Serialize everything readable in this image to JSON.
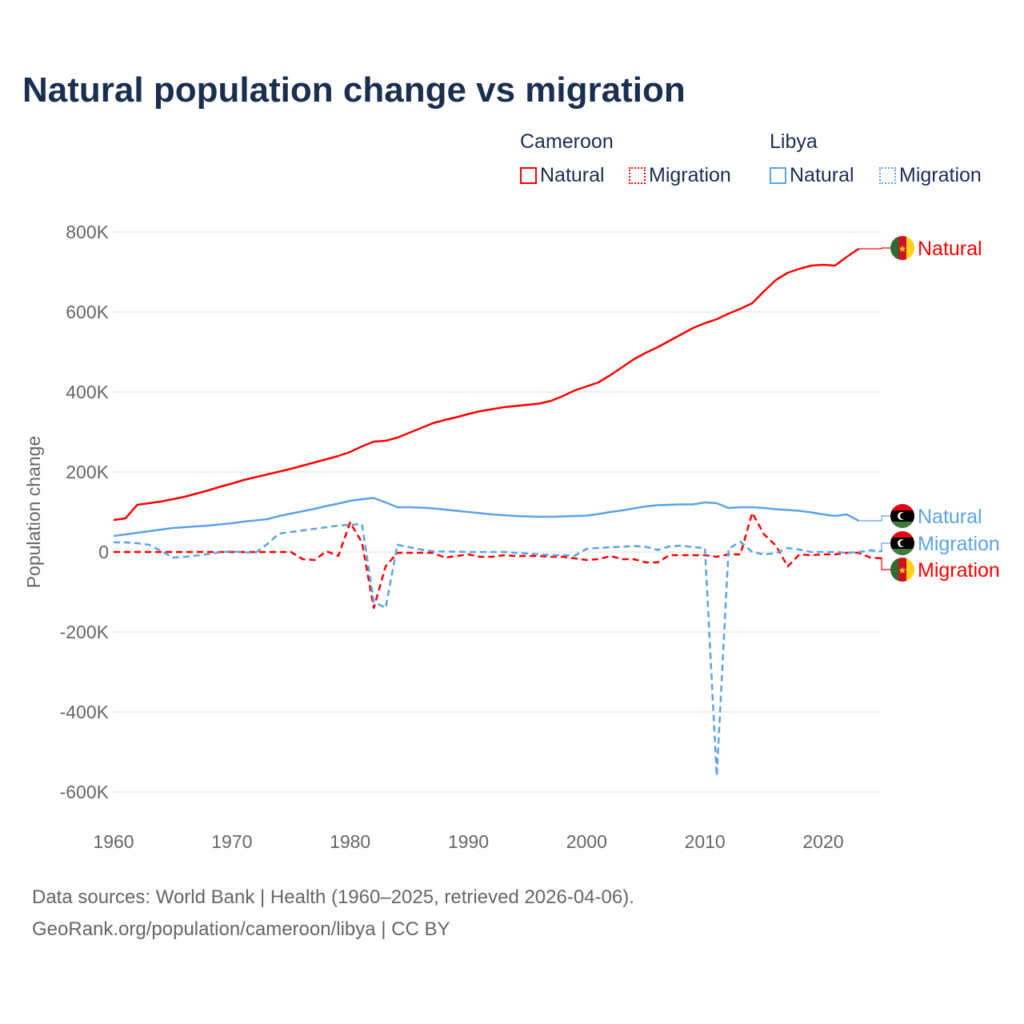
{
  "chart_data": {
    "type": "line",
    "title": "Natural population change vs migration",
    "ylabel": "Population change",
    "xlabel": "",
    "xlim": [
      1960,
      2025
    ],
    "ylim": [
      -600000,
      800000
    ],
    "x_ticks": [
      1960,
      1970,
      1980,
      1990,
      2000,
      2010,
      2020
    ],
    "x_tick_labels": [
      "1960",
      "1970",
      "1980",
      "1990",
      "2000",
      "2010",
      "2020"
    ],
    "y_ticks": [
      800000,
      600000,
      400000,
      200000,
      0,
      -200000,
      -400000,
      -600000
    ],
    "y_tick_labels": [
      "800K",
      "600K",
      "400K",
      "200K",
      "0",
      "-200K",
      "-400K",
      "-600K"
    ],
    "grid": true,
    "legend": {
      "placement": "top-right",
      "groups": [
        {
          "name": "Cameroon",
          "items": [
            "Natural",
            "Migration"
          ]
        },
        {
          "name": "Libya",
          "items": [
            "Natural",
            "Migration"
          ]
        }
      ]
    },
    "series": [
      {
        "name": "Cameroon Natural",
        "country": "Cameroon",
        "kind": "Natural",
        "label": "Natural",
        "color": "#ff0000",
        "dash": false,
        "start": 1960,
        "values": [
          80000,
          84000,
          118000,
          122000,
          126000,
          132000,
          138000,
          146000,
          154000,
          163000,
          171000,
          180000,
          187000,
          194000,
          201000,
          208000,
          216000,
          224000,
          232000,
          240000,
          250000,
          264000,
          276000,
          278000,
          286000,
          298000,
          310000,
          322000,
          330000,
          337000,
          345000,
          352000,
          357000,
          362000,
          365000,
          368000,
          371000,
          378000,
          390000,
          404000,
          414000,
          424000,
          442000,
          462000,
          482000,
          498000,
          512000,
          528000,
          544000,
          560000,
          572000,
          582000,
          596000,
          608000,
          622000,
          652000,
          680000,
          698000,
          708000,
          716000,
          718000,
          716000,
          738000,
          758000
        ]
      },
      {
        "name": "Cameroon Migration",
        "country": "Cameroon",
        "kind": "Migration",
        "label": "Migration",
        "color": "#ff0000",
        "dash": true,
        "start": 1960,
        "values": [
          0,
          0,
          0,
          0,
          0,
          0,
          0,
          0,
          0,
          0,
          0,
          0,
          0,
          0,
          0,
          0,
          -18000,
          -20000,
          2000,
          -10000,
          74000,
          24000,
          -140000,
          -36000,
          -2000,
          -2000,
          -2000,
          -2000,
          -14000,
          -10000,
          -6000,
          -12000,
          -12000,
          -8000,
          -10000,
          -10000,
          -10000,
          -12000,
          -12000,
          -16000,
          -20000,
          -18000,
          -10000,
          -18000,
          -18000,
          -26000,
          -26000,
          -8000,
          -8000,
          -8000,
          -8000,
          -12000,
          -6000,
          -6000,
          98000,
          44000,
          16000,
          -36000,
          -6000,
          -8000,
          -6000,
          -6000,
          -2000,
          -2000,
          -14000,
          -16000
        ]
      },
      {
        "name": "Libya Natural",
        "country": "Libya",
        "kind": "Natural",
        "label": "Natural",
        "color": "#5ba3e6",
        "dash": false,
        "start": 1960,
        "values": [
          40000,
          44000,
          48000,
          52000,
          56000,
          60000,
          62000,
          64000,
          66000,
          69000,
          72000,
          76000,
          79000,
          82000,
          90000,
          96000,
          102000,
          108000,
          115000,
          121000,
          128000,
          132000,
          135000,
          124000,
          112000,
          112000,
          111000,
          109000,
          106000,
          103000,
          100000,
          97000,
          94000,
          92000,
          90000,
          89000,
          88000,
          88000,
          89000,
          90000,
          91000,
          95000,
          100000,
          104000,
          109000,
          114000,
          117000,
          118000,
          119000,
          119000,
          124000,
          122000,
          110000,
          112000,
          112000,
          110000,
          107000,
          105000,
          103000,
          99000,
          94000,
          90000,
          94000,
          78000
        ]
      },
      {
        "name": "Libya Migration",
        "country": "Libya",
        "kind": "Migration",
        "label": "Migration",
        "color": "#5ba3e6",
        "dash": true,
        "start": 1960,
        "values": [
          24000,
          24000,
          22000,
          18000,
          3000,
          -14000,
          -12000,
          -9000,
          -5000,
          -1000,
          2000,
          -1000,
          -2000,
          20000,
          46000,
          50000,
          54000,
          58000,
          62000,
          66000,
          68000,
          70000,
          -125000,
          -140000,
          18000,
          12000,
          6000,
          2000,
          1000,
          1000,
          0,
          0,
          0,
          0,
          -2000,
          -4000,
          -6000,
          -8000,
          -8000,
          -9000,
          8000,
          10000,
          12000,
          13000,
          15000,
          13000,
          5000,
          14000,
          16000,
          12000,
          10000,
          -560000,
          8000,
          26000,
          0,
          -6000,
          -3000,
          10000,
          6000,
          0,
          0,
          0,
          -2000,
          0,
          4000,
          2000
        ]
      }
    ]
  },
  "legend": {
    "cameroon": "Cameroon",
    "libya": "Libya",
    "natural": "Natural",
    "migration": "Migration"
  },
  "footer": {
    "line1": "Data sources: World Bank | Health (1960–2025, retrieved 2026-04-06).",
    "line2": "GeoRank.org/population/cameroon/libya | CC BY"
  }
}
